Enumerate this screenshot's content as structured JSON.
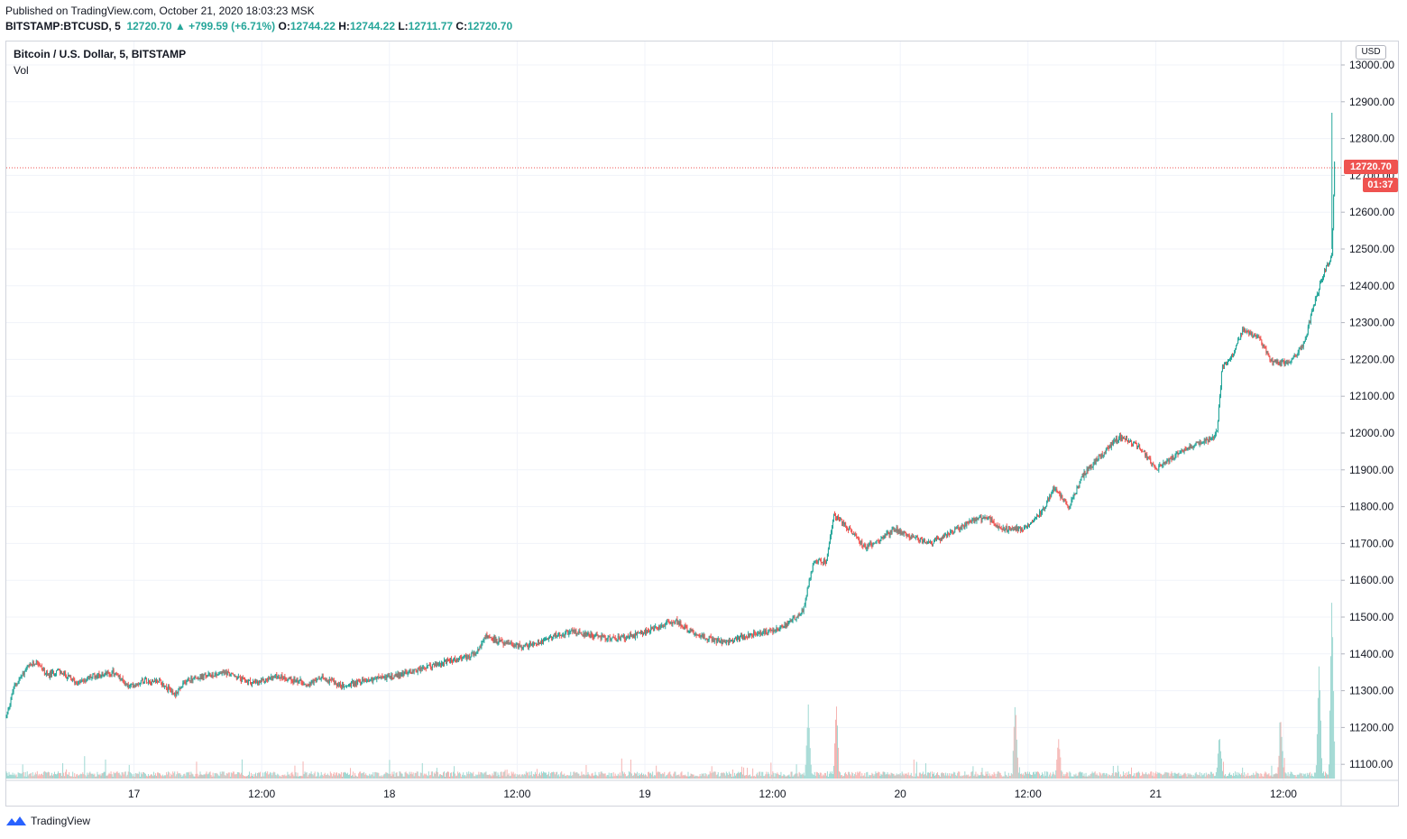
{
  "header": {
    "published": "Published on TradingView.com, October 21, 2020 18:03:23 MSK",
    "symbol": "BITSTAMP:BTCUSD, 5",
    "last": "12720.70",
    "change": "+799.59 (+6.71%)",
    "o_label": "O:",
    "o_value": "12744.22",
    "h_label": "H:",
    "h_value": "12744.22",
    "l_label": "L:",
    "l_value": "12711.77",
    "c_label": "C:",
    "c_value": "12720.70"
  },
  "legend": {
    "title": "Bitcoin / U.S. Dollar, 5, BITSTAMP",
    "volume": "Vol"
  },
  "price_axis": {
    "currency": "USD",
    "last_price": "12720.70",
    "countdown": "01:37"
  },
  "brand": {
    "name": "TradingView"
  },
  "colors": {
    "up": "#26a69a",
    "down": "#ef5350",
    "vol_up": "#9fd8d2",
    "vol_down": "#f5b4b2",
    "grid": "#f0f3fa"
  },
  "chart_data": {
    "type": "candlestick",
    "title": "Bitcoin / U.S. Dollar, 5, BITSTAMP",
    "ylim": [
      11050,
      13050
    ],
    "y_ticks": [
      "13000.00",
      "12900.00",
      "12800.00",
      "12700.00",
      "12600.00",
      "12500.00",
      "12400.00",
      "12300.00",
      "12200.00",
      "12100.00",
      "12000.00",
      "11900.00",
      "11800.00",
      "11700.00",
      "11600.00",
      "11500.00",
      "11400.00",
      "11300.00",
      "11200.00",
      "11100.00"
    ],
    "x_ticks": [
      {
        "t": 1.0,
        "label": "17"
      },
      {
        "t": 1.5,
        "label": "12:00"
      },
      {
        "t": 2.0,
        "label": "18"
      },
      {
        "t": 2.5,
        "label": "12:00"
      },
      {
        "t": 3.0,
        "label": "19"
      },
      {
        "t": 3.5,
        "label": "12:00"
      },
      {
        "t": 4.0,
        "label": "20"
      },
      {
        "t": 4.5,
        "label": "12:00"
      },
      {
        "t": 5.0,
        "label": "21"
      },
      {
        "t": 5.5,
        "label": "12:00"
      }
    ],
    "xlim": [
      0.5,
      5.7
    ],
    "price_path": [
      [
        0.5,
        11230
      ],
      [
        0.53,
        11310
      ],
      [
        0.58,
        11360
      ],
      [
        0.62,
        11380
      ],
      [
        0.66,
        11340
      ],
      [
        0.7,
        11355
      ],
      [
        0.78,
        11320
      ],
      [
        0.84,
        11340
      ],
      [
        0.92,
        11350
      ],
      [
        0.98,
        11310
      ],
      [
        1.04,
        11330
      ],
      [
        1.1,
        11325
      ],
      [
        1.16,
        11290
      ],
      [
        1.21,
        11330
      ],
      [
        1.28,
        11340
      ],
      [
        1.36,
        11350
      ],
      [
        1.42,
        11330
      ],
      [
        1.48,
        11320
      ],
      [
        1.56,
        11340
      ],
      [
        1.62,
        11330
      ],
      [
        1.69,
        11320
      ],
      [
        1.74,
        11335
      ],
      [
        1.82,
        11310
      ],
      [
        1.88,
        11325
      ],
      [
        1.96,
        11335
      ],
      [
        2.02,
        11340
      ],
      [
        2.1,
        11355
      ],
      [
        2.18,
        11370
      ],
      [
        2.26,
        11385
      ],
      [
        2.34,
        11400
      ],
      [
        2.38,
        11450
      ],
      [
        2.44,
        11430
      ],
      [
        2.52,
        11420
      ],
      [
        2.58,
        11430
      ],
      [
        2.64,
        11450
      ],
      [
        2.72,
        11460
      ],
      [
        2.8,
        11450
      ],
      [
        2.88,
        11440
      ],
      [
        2.96,
        11450
      ],
      [
        3.04,
        11470
      ],
      [
        3.12,
        11490
      ],
      [
        3.18,
        11460
      ],
      [
        3.26,
        11440
      ],
      [
        3.32,
        11430
      ],
      [
        3.4,
        11450
      ],
      [
        3.48,
        11460
      ],
      [
        3.56,
        11480
      ],
      [
        3.62,
        11520
      ],
      [
        3.66,
        11650
      ],
      [
        3.71,
        11650
      ],
      [
        3.74,
        11780
      ],
      [
        3.8,
        11740
      ],
      [
        3.86,
        11690
      ],
      [
        3.92,
        11710
      ],
      [
        3.98,
        11740
      ],
      [
        4.04,
        11720
      ],
      [
        4.12,
        11700
      ],
      [
        4.2,
        11730
      ],
      [
        4.28,
        11760
      ],
      [
        4.34,
        11770
      ],
      [
        4.4,
        11740
      ],
      [
        4.48,
        11740
      ],
      [
        4.56,
        11790
      ],
      [
        4.6,
        11850
      ],
      [
        4.66,
        11800
      ],
      [
        4.72,
        11890
      ],
      [
        4.8,
        11950
      ],
      [
        4.86,
        11990
      ],
      [
        4.94,
        11960
      ],
      [
        5.0,
        11900
      ],
      [
        5.06,
        11930
      ],
      [
        5.12,
        11960
      ],
      [
        5.2,
        11980
      ],
      [
        5.24,
        12000
      ],
      [
        5.26,
        12180
      ],
      [
        5.3,
        12210
      ],
      [
        5.34,
        12280
      ],
      [
        5.4,
        12260
      ],
      [
        5.46,
        12190
      ],
      [
        5.52,
        12190
      ],
      [
        5.58,
        12240
      ],
      [
        5.62,
        12350
      ],
      [
        5.66,
        12440
      ],
      [
        5.69,
        12480
      ],
      [
        5.7,
        12730
      ]
    ],
    "volume_spikes": [
      {
        "t": 3.64,
        "v": 0.75
      },
      {
        "t": 3.75,
        "v": 0.8
      },
      {
        "t": 4.45,
        "v": 0.8
      },
      {
        "t": 4.62,
        "v": 0.4
      },
      {
        "t": 5.25,
        "v": 0.45
      },
      {
        "t": 5.49,
        "v": 0.6
      },
      {
        "t": 5.64,
        "v": 1.25
      },
      {
        "t": 5.69,
        "v": 2.0
      }
    ]
  }
}
